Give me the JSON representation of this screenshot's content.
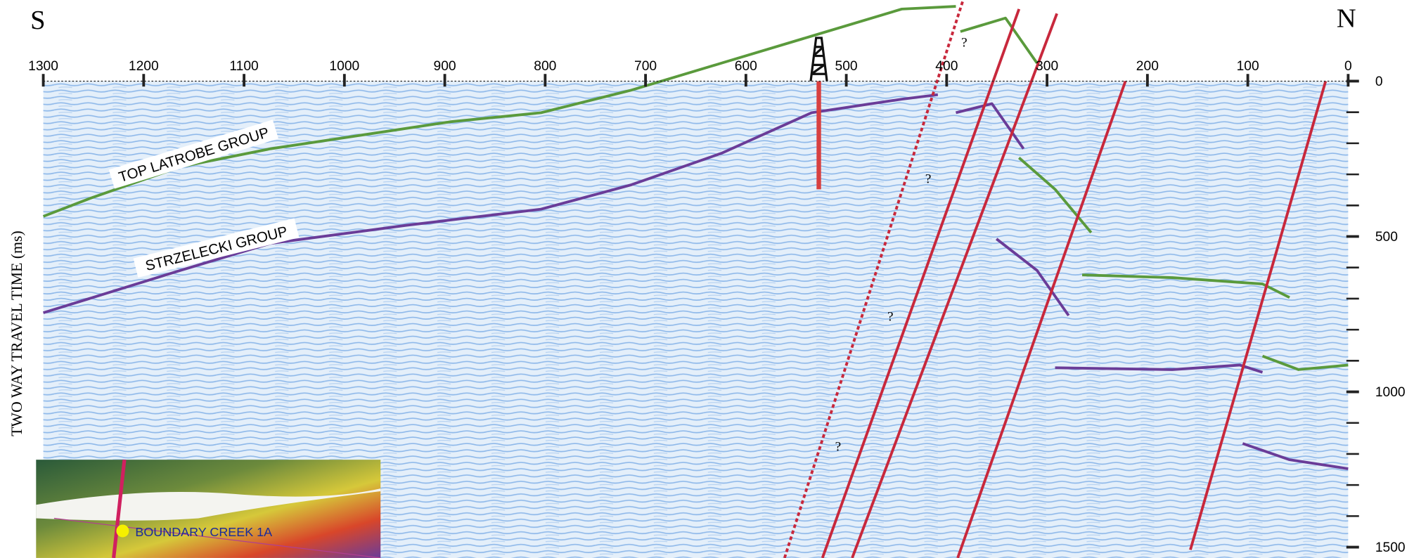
{
  "section": {
    "left_end": "S",
    "right_end": "N",
    "y_axis_title": "TWO WAY TRAVEL TIME (ms)",
    "x_ticks": [
      1300,
      1200,
      1100,
      1000,
      900,
      800,
      700,
      600,
      500,
      400,
      300,
      200,
      100,
      0
    ],
    "y_ticks": [
      0,
      500,
      1000,
      1500
    ],
    "horizon_labels": [
      "TOP LATROBE GROUP",
      "STRZELECKI GROUP"
    ],
    "question_marks": [
      "?",
      "?",
      "?",
      "?"
    ],
    "inset_label": "BOUNDARY CREEK 1A"
  }
}
